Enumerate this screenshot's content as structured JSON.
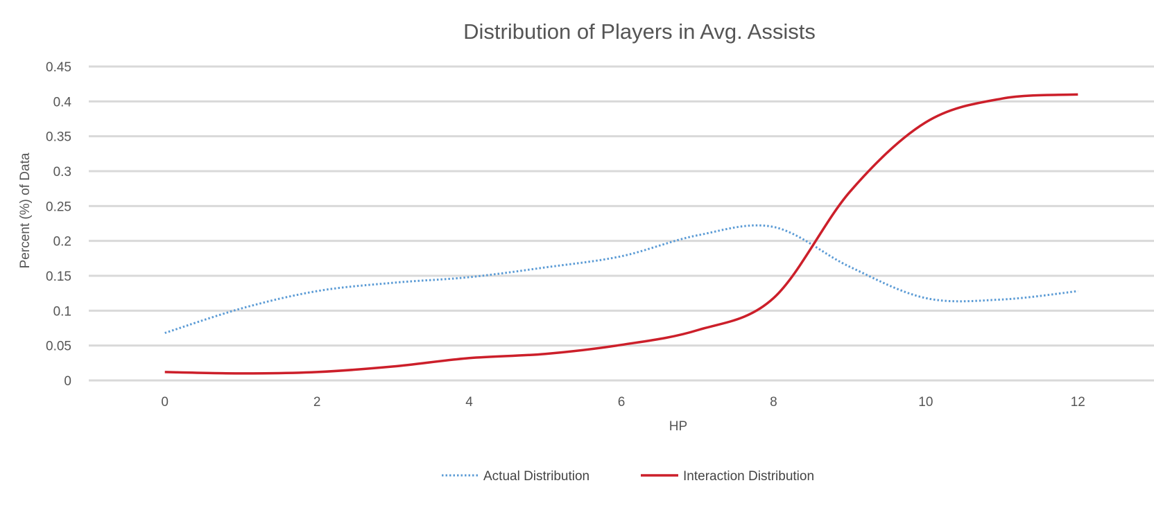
{
  "chart_data": {
    "type": "line",
    "title": "Distribution of Players in Avg. Assists",
    "xlabel": "HP",
    "ylabel": "Percent (%) of Data",
    "xlim": [
      -1,
      13
    ],
    "ylim": [
      0,
      0.45
    ],
    "grid": true,
    "legend_position": "bottom",
    "x_ticks": [
      "0",
      "2",
      "4",
      "6",
      "8",
      "10",
      "12"
    ],
    "x_tick_values": [
      0,
      2,
      4,
      6,
      8,
      10,
      12
    ],
    "y_ticks": [
      "0",
      "0.05",
      "0.1",
      "0.15",
      "0.2",
      "0.25",
      "0.3",
      "0.35",
      "0.4",
      "0.45"
    ],
    "y_tick_values": [
      0,
      0.05,
      0.1,
      0.15,
      0.2,
      0.25,
      0.3,
      0.35,
      0.4,
      0.45
    ],
    "series": [
      {
        "name": "Actual Distribution",
        "color": "#5b9bd5",
        "style": "dotted",
        "x": [
          0,
          1,
          2,
          3,
          4,
          5,
          6,
          7,
          8,
          9,
          10,
          11,
          12
        ],
        "y": [
          0.068,
          0.103,
          0.128,
          0.14,
          0.148,
          0.162,
          0.178,
          0.208,
          0.22,
          0.163,
          0.118,
          0.116,
          0.128
        ]
      },
      {
        "name": "Interaction Distribution",
        "color": "#cc1f2a",
        "style": "solid",
        "x": [
          0,
          1,
          2,
          3,
          4,
          5,
          6,
          7,
          8,
          9,
          10,
          11,
          12
        ],
        "y": [
          0.012,
          0.01,
          0.012,
          0.02,
          0.032,
          0.038,
          0.051,
          0.072,
          0.118,
          0.27,
          0.37,
          0.404,
          0.41
        ]
      }
    ]
  }
}
